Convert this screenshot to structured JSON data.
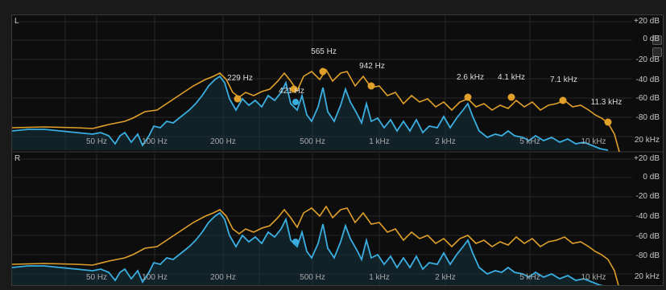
{
  "channels": [
    {
      "label": "L"
    },
    {
      "label": "R"
    }
  ],
  "db_labels": [
    "+20 dB",
    "0 dB",
    "-20 dB",
    "-40 dB",
    "-60 dB",
    "-80 dB",
    "20 kHz"
  ],
  "freq_labels": [
    "50 Hz",
    "100 Hz",
    "200 Hz",
    "500 Hz",
    "1 kHz",
    "2 kHz",
    "5 kHz",
    "10 kHz"
  ],
  "peak_labels": [
    "229 Hz",
    "421 Hz",
    "565 Hz",
    "942 Hz",
    "2.6 kHz",
    "4.1 kHz",
    "7.1 kHz",
    "11.3 kHz"
  ],
  "colors": {
    "peak_curve": "#e0a02a",
    "spectrum_curve": "#3aaee0",
    "grid": "#262626",
    "background": "#0d0d0d"
  },
  "chart_data": {
    "type": "line",
    "x_scale": "log",
    "xlim": [
      20,
      20000
    ],
    "ylim": [
      -100,
      20
    ],
    "series": []
  }
}
